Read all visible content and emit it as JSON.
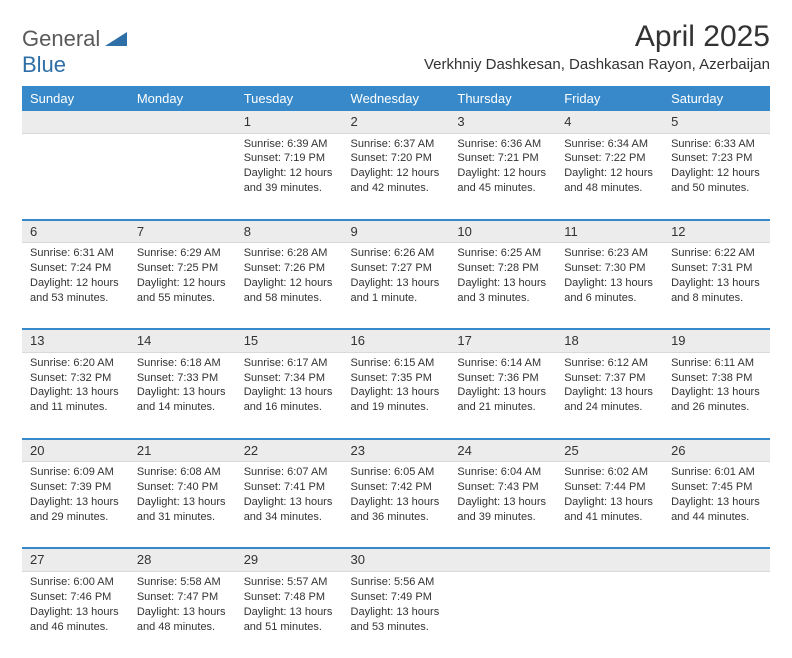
{
  "logo": {
    "general": "General",
    "blue": "Blue"
  },
  "title": "April 2025",
  "location": "Verkhniy Dashkesan, Dashkasan Rayon, Azerbaijan",
  "colors": {
    "header_bg": "#3789c9",
    "header_text": "#ffffff",
    "daynum_bg": "#ececec",
    "text": "#333333",
    "sep": "#3789c9"
  },
  "day_headers": [
    "Sunday",
    "Monday",
    "Tuesday",
    "Wednesday",
    "Thursday",
    "Friday",
    "Saturday"
  ],
  "weeks": [
    [
      null,
      null,
      {
        "n": "1",
        "sr": "6:39 AM",
        "ss": "7:19 PM",
        "dl": "12 hours and 39 minutes."
      },
      {
        "n": "2",
        "sr": "6:37 AM",
        "ss": "7:20 PM",
        "dl": "12 hours and 42 minutes."
      },
      {
        "n": "3",
        "sr": "6:36 AM",
        "ss": "7:21 PM",
        "dl": "12 hours and 45 minutes."
      },
      {
        "n": "4",
        "sr": "6:34 AM",
        "ss": "7:22 PM",
        "dl": "12 hours and 48 minutes."
      },
      {
        "n": "5",
        "sr": "6:33 AM",
        "ss": "7:23 PM",
        "dl": "12 hours and 50 minutes."
      }
    ],
    [
      {
        "n": "6",
        "sr": "6:31 AM",
        "ss": "7:24 PM",
        "dl": "12 hours and 53 minutes."
      },
      {
        "n": "7",
        "sr": "6:29 AM",
        "ss": "7:25 PM",
        "dl": "12 hours and 55 minutes."
      },
      {
        "n": "8",
        "sr": "6:28 AM",
        "ss": "7:26 PM",
        "dl": "12 hours and 58 minutes."
      },
      {
        "n": "9",
        "sr": "6:26 AM",
        "ss": "7:27 PM",
        "dl": "13 hours and 1 minute."
      },
      {
        "n": "10",
        "sr": "6:25 AM",
        "ss": "7:28 PM",
        "dl": "13 hours and 3 minutes."
      },
      {
        "n": "11",
        "sr": "6:23 AM",
        "ss": "7:30 PM",
        "dl": "13 hours and 6 minutes."
      },
      {
        "n": "12",
        "sr": "6:22 AM",
        "ss": "7:31 PM",
        "dl": "13 hours and 8 minutes."
      }
    ],
    [
      {
        "n": "13",
        "sr": "6:20 AM",
        "ss": "7:32 PM",
        "dl": "13 hours and 11 minutes."
      },
      {
        "n": "14",
        "sr": "6:18 AM",
        "ss": "7:33 PM",
        "dl": "13 hours and 14 minutes."
      },
      {
        "n": "15",
        "sr": "6:17 AM",
        "ss": "7:34 PM",
        "dl": "13 hours and 16 minutes."
      },
      {
        "n": "16",
        "sr": "6:15 AM",
        "ss": "7:35 PM",
        "dl": "13 hours and 19 minutes."
      },
      {
        "n": "17",
        "sr": "6:14 AM",
        "ss": "7:36 PM",
        "dl": "13 hours and 21 minutes."
      },
      {
        "n": "18",
        "sr": "6:12 AM",
        "ss": "7:37 PM",
        "dl": "13 hours and 24 minutes."
      },
      {
        "n": "19",
        "sr": "6:11 AM",
        "ss": "7:38 PM",
        "dl": "13 hours and 26 minutes."
      }
    ],
    [
      {
        "n": "20",
        "sr": "6:09 AM",
        "ss": "7:39 PM",
        "dl": "13 hours and 29 minutes."
      },
      {
        "n": "21",
        "sr": "6:08 AM",
        "ss": "7:40 PM",
        "dl": "13 hours and 31 minutes."
      },
      {
        "n": "22",
        "sr": "6:07 AM",
        "ss": "7:41 PM",
        "dl": "13 hours and 34 minutes."
      },
      {
        "n": "23",
        "sr": "6:05 AM",
        "ss": "7:42 PM",
        "dl": "13 hours and 36 minutes."
      },
      {
        "n": "24",
        "sr": "6:04 AM",
        "ss": "7:43 PM",
        "dl": "13 hours and 39 minutes."
      },
      {
        "n": "25",
        "sr": "6:02 AM",
        "ss": "7:44 PM",
        "dl": "13 hours and 41 minutes."
      },
      {
        "n": "26",
        "sr": "6:01 AM",
        "ss": "7:45 PM",
        "dl": "13 hours and 44 minutes."
      }
    ],
    [
      {
        "n": "27",
        "sr": "6:00 AM",
        "ss": "7:46 PM",
        "dl": "13 hours and 46 minutes."
      },
      {
        "n": "28",
        "sr": "5:58 AM",
        "ss": "7:47 PM",
        "dl": "13 hours and 48 minutes."
      },
      {
        "n": "29",
        "sr": "5:57 AM",
        "ss": "7:48 PM",
        "dl": "13 hours and 51 minutes."
      },
      {
        "n": "30",
        "sr": "5:56 AM",
        "ss": "7:49 PM",
        "dl": "13 hours and 53 minutes."
      },
      null,
      null,
      null
    ]
  ],
  "labels": {
    "sunrise": "Sunrise:",
    "sunset": "Sunset:",
    "daylight": "Daylight:"
  }
}
